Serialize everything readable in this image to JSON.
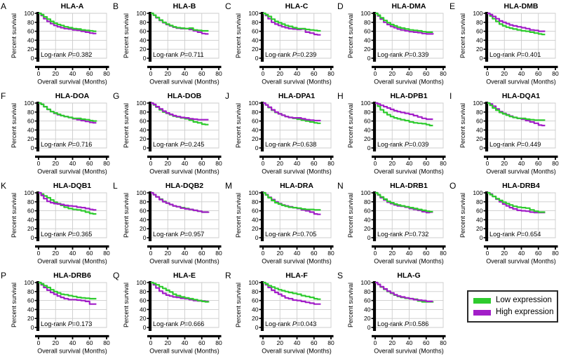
{
  "figure": {
    "colors": {
      "low": "#2ECB2E",
      "high": "#A21EC8",
      "grid": "#cccccc",
      "axis": "#000000",
      "text": "#000000",
      "background": "#ffffff",
      "legend_border": "#2a2a2a"
    },
    "legend": {
      "items": [
        {
          "label": "Low expression",
          "color_key": "low"
        },
        {
          "label": "High expression",
          "color_key": "high"
        }
      ]
    }
  },
  "chart_data": {
    "type": "line",
    "subtype": "kaplan-meier-survival",
    "layout": "4x5-grid",
    "xlabel": "Overall survival (Months)",
    "ylabel": "Percent survival",
    "xlim": [
      0,
      80
    ],
    "ylim": [
      0,
      100
    ],
    "x_ticks": [
      0,
      20,
      40,
      60,
      80
    ],
    "y_ticks": [
      0,
      20,
      40,
      60,
      80,
      100
    ],
    "grid": true,
    "logrank_label": "Log-rank",
    "p_symbol": "P",
    "series_names": [
      "Low expression",
      "High expression"
    ],
    "x_months": [
      0,
      3,
      6,
      10,
      14,
      18,
      22,
      26,
      30,
      35,
      40,
      45,
      50,
      55,
      60,
      64,
      68
    ],
    "panels": [
      {
        "letter": "A",
        "title": "HLA-A",
        "p_value": "0.382",
        "front": "low",
        "low": [
          100,
          97,
          92,
          87,
          82,
          78,
          75,
          73,
          70,
          68,
          66,
          65,
          63,
          62,
          61,
          60,
          60
        ],
        "high": [
          100,
          95,
          88,
          82,
          77,
          73,
          70,
          68,
          66,
          65,
          63,
          62,
          60,
          58,
          56,
          55,
          55
        ]
      },
      {
        "letter": "B",
        "title": "HLA-B",
        "p_value": "0.711",
        "front": "low",
        "low": [
          100,
          96,
          91,
          85,
          80,
          76,
          73,
          70,
          68,
          67,
          66,
          67,
          63,
          62,
          61,
          61,
          61
        ],
        "high": [
          100,
          96,
          90,
          84,
          79,
          75,
          72,
          69,
          67,
          66,
          66,
          64,
          61,
          58,
          55,
          54,
          54
        ]
      },
      {
        "letter": "C",
        "title": "HLA-C",
        "p_value": "0.239",
        "front": "low",
        "low": [
          100,
          97,
          93,
          87,
          82,
          79,
          76,
          73,
          71,
          68,
          66,
          66,
          64,
          63,
          62,
          61,
          61
        ],
        "high": [
          100,
          95,
          88,
          80,
          76,
          73,
          70,
          68,
          66,
          65,
          64,
          65,
          58,
          56,
          53,
          52,
          52
        ]
      },
      {
        "letter": "D",
        "title": "HLA-DMA",
        "p_value": "0.339",
        "front": "low",
        "low": [
          100,
          96,
          90,
          84,
          79,
          75,
          72,
          69,
          67,
          65,
          63,
          62,
          61,
          59,
          58,
          58,
          58
        ],
        "high": [
          100,
          94,
          87,
          80,
          75,
          71,
          68,
          65,
          63,
          61,
          59,
          58,
          57,
          55,
          54,
          54,
          56
        ]
      },
      {
        "letter": "E",
        "title": "HLA-DMB",
        "p_value": "0.401",
        "front": "high",
        "low": [
          100,
          94,
          88,
          82,
          76,
          72,
          69,
          67,
          65,
          63,
          61,
          60,
          58,
          56,
          54,
          53,
          53
        ],
        "high": [
          100,
          97,
          93,
          88,
          83,
          80,
          77,
          74,
          72,
          70,
          68,
          66,
          63,
          62,
          60,
          60,
          60
        ]
      },
      {
        "letter": "F",
        "title": "HLA-DOA",
        "p_value": "0.716",
        "front": "low",
        "low": [
          100,
          97,
          92,
          86,
          81,
          78,
          75,
          72,
          70,
          68,
          66,
          66,
          64,
          63,
          61,
          60,
          59
        ],
        "high": [
          100,
          97,
          92,
          86,
          81,
          77,
          74,
          72,
          70,
          68,
          65,
          63,
          61,
          59,
          57,
          56,
          56
        ]
      },
      {
        "letter": "G",
        "title": "HLA-DOB",
        "p_value": "0.245",
        "front": "high",
        "low": [
          100,
          96,
          91,
          85,
          80,
          77,
          74,
          71,
          69,
          67,
          65,
          62,
          58,
          56,
          53,
          52,
          52
        ],
        "high": [
          100,
          97,
          92,
          87,
          82,
          78,
          75,
          72,
          70,
          68,
          67,
          65,
          64,
          63,
          63,
          63,
          63
        ]
      },
      {
        "letter": "J",
        "title": "HLA-DPA1",
        "p_value": "0.638",
        "front": "high",
        "low": [
          100,
          96,
          90,
          84,
          79,
          76,
          73,
          70,
          68,
          66,
          64,
          62,
          60,
          58,
          56,
          55,
          55
        ],
        "high": [
          100,
          96,
          91,
          85,
          80,
          76,
          73,
          70,
          68,
          67,
          67,
          65,
          63,
          62,
          61,
          61,
          61
        ]
      },
      {
        "letter": "H",
        "title": "HLA-DPB1",
        "p_value": "0.039",
        "front": "high",
        "low": [
          100,
          93,
          85,
          79,
          74,
          70,
          67,
          65,
          63,
          61,
          58,
          56,
          55,
          54,
          52,
          50,
          50
        ],
        "high": [
          100,
          98,
          95,
          92,
          89,
          86,
          83,
          81,
          79,
          77,
          75,
          72,
          69,
          66,
          64,
          64,
          64
        ]
      },
      {
        "letter": "I",
        "title": "HLA-DQA1",
        "p_value": "0.449",
        "front": "low",
        "low": [
          100,
          95,
          89,
          84,
          79,
          76,
          73,
          70,
          68,
          66,
          66,
          64,
          63,
          62,
          62,
          62,
          62
        ],
        "high": [
          100,
          98,
          93,
          87,
          81,
          77,
          74,
          71,
          68,
          66,
          64,
          61,
          58,
          55,
          51,
          50,
          50
        ]
      },
      {
        "letter": "K",
        "title": "HLA-DQB1",
        "p_value": "0.365",
        "front": "high",
        "low": [
          100,
          97,
          93,
          89,
          84,
          79,
          76,
          72,
          68,
          65,
          63,
          62,
          60,
          57,
          54,
          53,
          53
        ],
        "high": [
          100,
          94,
          87,
          81,
          78,
          76,
          75,
          74,
          72,
          71,
          70,
          68,
          67,
          65,
          63,
          62,
          62
        ]
      },
      {
        "letter": "L",
        "title": "HLA-DQB2",
        "p_value": "0.957",
        "front": "high",
        "low": [
          100,
          96,
          91,
          86,
          81,
          77,
          74,
          71,
          69,
          67,
          65,
          63,
          61,
          59,
          57,
          57,
          57
        ],
        "high": [
          100,
          96,
          91,
          85,
          80,
          77,
          74,
          71,
          69,
          66,
          64,
          63,
          61,
          59,
          57,
          57,
          58
        ]
      },
      {
        "letter": "M",
        "title": "HLA-DRA",
        "p_value": "0.705",
        "front": "low",
        "low": [
          100,
          95,
          89,
          83,
          78,
          75,
          72,
          70,
          68,
          67,
          66,
          64,
          63,
          63,
          62,
          62,
          62
        ],
        "high": [
          100,
          96,
          90,
          85,
          80,
          76,
          73,
          71,
          69,
          67,
          65,
          62,
          60,
          57,
          53,
          52,
          52
        ]
      },
      {
        "letter": "N",
        "title": "HLA-DRB1",
        "p_value": "0.732",
        "front": "low",
        "low": [
          100,
          96,
          91,
          86,
          81,
          78,
          75,
          73,
          71,
          69,
          67,
          65,
          63,
          61,
          59,
          58,
          58
        ],
        "high": [
          100,
          95,
          89,
          84,
          79,
          76,
          73,
          71,
          70,
          68,
          65,
          63,
          61,
          58,
          56,
          57,
          57
        ]
      },
      {
        "letter": "O",
        "title": "HLA-DRB4",
        "p_value": "0.654",
        "front": "low",
        "low": [
          100,
          96,
          92,
          87,
          83,
          79,
          76,
          73,
          70,
          68,
          67,
          66,
          62,
          59,
          57,
          57,
          57
        ],
        "high": [
          100,
          97,
          92,
          86,
          80,
          75,
          71,
          67,
          64,
          61,
          60,
          59,
          57,
          56,
          56,
          56,
          56
        ]
      },
      {
        "letter": "P",
        "title": "HLA-DRB6",
        "p_value": "0.173",
        "front": "low",
        "low": [
          100,
          97,
          93,
          89,
          84,
          80,
          77,
          74,
          73,
          71,
          69,
          67,
          66,
          65,
          64,
          64,
          64
        ],
        "high": [
          100,
          95,
          89,
          83,
          78,
          74,
          70,
          67,
          64,
          62,
          62,
          61,
          60,
          58,
          52,
          52,
          52
        ]
      },
      {
        "letter": "Q",
        "title": "HLA-E",
        "p_value": "0.666",
        "front": "low",
        "low": [
          100,
          98,
          95,
          91,
          87,
          83,
          79,
          74,
          71,
          68,
          66,
          64,
          62,
          60,
          58,
          57,
          56
        ],
        "high": [
          100,
          95,
          88,
          81,
          76,
          72,
          70,
          68,
          67,
          65,
          64,
          62,
          60,
          59,
          59,
          58,
          58
        ]
      },
      {
        "letter": "R",
        "title": "HLA-F",
        "p_value": "0.043",
        "front": "low",
        "low": [
          100,
          97,
          93,
          90,
          87,
          84,
          82,
          80,
          78,
          76,
          74,
          71,
          69,
          67,
          64,
          63,
          63
        ],
        "high": [
          100,
          95,
          89,
          83,
          78,
          74,
          70,
          66,
          64,
          61,
          60,
          58,
          56,
          54,
          52,
          52,
          52
        ]
      },
      {
        "letter": "S",
        "title": "HLA-G",
        "p_value": "0.586",
        "front": "high",
        "low": [
          100,
          96,
          90,
          85,
          80,
          76,
          72,
          69,
          67,
          65,
          64,
          63,
          59,
          57,
          57,
          57,
          58
        ],
        "high": [
          100,
          96,
          91,
          86,
          81,
          77,
          73,
          70,
          68,
          66,
          64,
          62,
          61,
          60,
          58,
          58,
          58
        ]
      }
    ]
  }
}
